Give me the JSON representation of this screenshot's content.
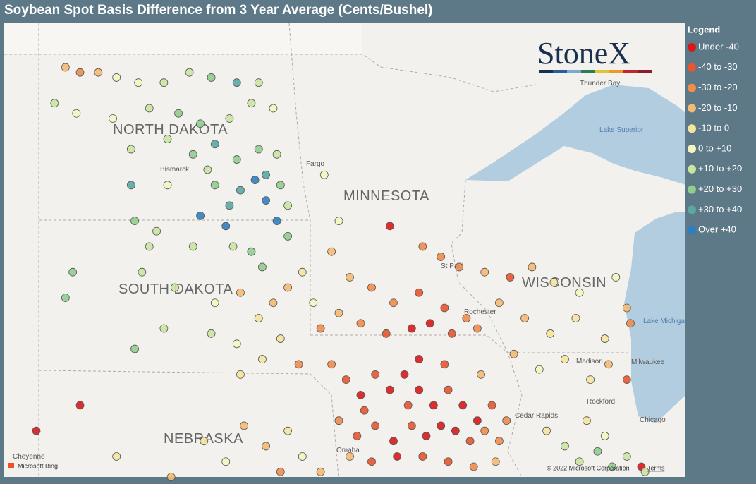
{
  "title": "Soybean Spot Basis Difference from 3 Year Average (Cents/Bushel)",
  "legend": {
    "title": "Legend",
    "items": [
      {
        "label": "Under -40",
        "color": "#d7191c"
      },
      {
        "label": "-40 to -30",
        "color": "#e8552f"
      },
      {
        "label": "-30 to -20",
        "color": "#f08c4c"
      },
      {
        "label": "-20 to -10",
        "color": "#f5ba72"
      },
      {
        "label": "-10 to 0",
        "color": "#f5e49c"
      },
      {
        "label": "0 to +10",
        "color": "#f4f6c0"
      },
      {
        "label": "+10 to +20",
        "color": "#c8e6a0"
      },
      {
        "label": "+20 to +30",
        "color": "#90cd8f"
      },
      {
        "label": "+30 to +40",
        "color": "#5aa8a2"
      },
      {
        "label": "Over +40",
        "color": "#2f7fc0"
      }
    ]
  },
  "map": {
    "logo": "StoneX",
    "labels": [
      "NORTH DAKOTA",
      "MINNESOTA",
      "SOUTH DAKOTA",
      "WISCONSIN",
      "NEBRASKA",
      "Bismarck",
      "Fargo",
      "St Paul",
      "Rochester",
      "Madison",
      "Milwaukee",
      "Chicago",
      "Rockford",
      "Cedar Rapids",
      "Omaha",
      "Cheyenne",
      "Thunder Bay",
      "Lake Superior",
      "Lake Michigan"
    ],
    "attribution": "Microsoft Bing",
    "copyright": "© 2022 Microsoft Corporation",
    "terms": "Terms",
    "lon_range": [
      -104.98,
      -86.29
    ],
    "lat_range": [
      49.76,
      40.9
    ],
    "points": [
      [
        -103.3,
        48.9,
        3
      ],
      [
        -102.9,
        48.8,
        2
      ],
      [
        -102.4,
        48.8,
        3
      ],
      [
        -101.9,
        48.7,
        5
      ],
      [
        -101.3,
        48.6,
        5
      ],
      [
        -100.6,
        48.6,
        6
      ],
      [
        -99.9,
        48.8,
        6
      ],
      [
        -99.3,
        48.7,
        7
      ],
      [
        -98.6,
        48.6,
        8
      ],
      [
        -98.0,
        48.6,
        6
      ],
      [
        -103.6,
        48.2,
        6
      ],
      [
        -103.0,
        48.0,
        5
      ],
      [
        -102.0,
        47.9,
        5
      ],
      [
        -101.0,
        48.1,
        6
      ],
      [
        -100.2,
        48.0,
        7
      ],
      [
        -99.6,
        47.8,
        7
      ],
      [
        -98.8,
        47.9,
        6
      ],
      [
        -98.2,
        48.2,
        6
      ],
      [
        -97.6,
        48.1,
        5
      ],
      [
        -101.5,
        47.3,
        6
      ],
      [
        -100.5,
        47.5,
        6
      ],
      [
        -99.8,
        47.2,
        7
      ],
      [
        -99.2,
        47.4,
        8
      ],
      [
        -98.6,
        47.1,
        7
      ],
      [
        -98.0,
        47.3,
        7
      ],
      [
        -97.5,
        47.2,
        6
      ],
      [
        -101.5,
        46.6,
        8
      ],
      [
        -100.5,
        46.6,
        5
      ],
      [
        -99.4,
        46.9,
        6
      ],
      [
        -99.2,
        46.6,
        7
      ],
      [
        -98.5,
        46.5,
        8
      ],
      [
        -98.1,
        46.7,
        9
      ],
      [
        -97.8,
        46.8,
        8
      ],
      [
        -97.4,
        46.6,
        7
      ],
      [
        -97.8,
        46.3,
        9
      ],
      [
        -97.2,
        46.2,
        6
      ],
      [
        -98.8,
        46.2,
        8
      ],
      [
        -99.6,
        46.0,
        9
      ],
      [
        -101.4,
        45.9,
        7
      ],
      [
        -100.8,
        45.7,
        6
      ],
      [
        -101.0,
        45.4,
        6
      ],
      [
        -99.8,
        45.4,
        6
      ],
      [
        -98.7,
        45.4,
        6
      ],
      [
        -98.2,
        45.3,
        7
      ],
      [
        -97.9,
        45.0,
        7
      ],
      [
        -97.2,
        45.6,
        7
      ],
      [
        -97.5,
        45.9,
        9
      ],
      [
        -98.9,
        45.8,
        9
      ],
      [
        -103.1,
        44.9,
        7
      ],
      [
        -103.3,
        44.4,
        7
      ],
      [
        -101.2,
        44.9,
        6
      ],
      [
        -100.3,
        44.6,
        6
      ],
      [
        -99.2,
        44.3,
        5
      ],
      [
        -98.5,
        44.5,
        3
      ],
      [
        -98.0,
        44.0,
        4
      ],
      [
        -97.6,
        44.3,
        3
      ],
      [
        -97.2,
        44.6,
        3
      ],
      [
        -96.8,
        44.9,
        4
      ],
      [
        -101.4,
        43.4,
        7
      ],
      [
        -100.6,
        43.8,
        6
      ],
      [
        -99.3,
        43.7,
        6
      ],
      [
        -98.6,
        43.5,
        5
      ],
      [
        -97.9,
        43.2,
        4
      ],
      [
        -97.4,
        43.6,
        4
      ],
      [
        -96.9,
        43.1,
        2
      ],
      [
        -98.5,
        42.9,
        4
      ],
      [
        -102.9,
        42.3,
        0
      ],
      [
        -104.1,
        41.8,
        0
      ],
      [
        -101.9,
        41.3,
        4
      ],
      [
        -100.4,
        40.9,
        3
      ],
      [
        -98.4,
        41.9,
        3
      ],
      [
        -97.8,
        41.5,
        3
      ],
      [
        -97.2,
        41.8,
        4
      ],
      [
        -96.8,
        41.3,
        5
      ],
      [
        -96.3,
        41.0,
        3
      ],
      [
        -97.4,
        41.0,
        2
      ],
      [
        -98.9,
        41.2,
        5
      ],
      [
        -99.5,
        41.6,
        4
      ],
      [
        -96.2,
        46.8,
        5
      ],
      [
        -95.8,
        45.9,
        5
      ],
      [
        -94.4,
        45.8,
        0
      ],
      [
        -93.5,
        45.4,
        2
      ],
      [
        -93.0,
        45.2,
        2
      ],
      [
        -92.5,
        45.0,
        2
      ],
      [
        -91.8,
        44.9,
        3
      ],
      [
        -95.5,
        44.8,
        3
      ],
      [
        -94.9,
        44.6,
        2
      ],
      [
        -94.3,
        44.3,
        2
      ],
      [
        -93.6,
        44.5,
        1
      ],
      [
        -92.9,
        44.2,
        1
      ],
      [
        -92.3,
        44.0,
        2
      ],
      [
        -95.8,
        44.1,
        3
      ],
      [
        -95.2,
        43.9,
        2
      ],
      [
        -94.5,
        43.7,
        1
      ],
      [
        -93.8,
        43.8,
        0
      ],
      [
        -93.3,
        43.9,
        0
      ],
      [
        -92.7,
        43.7,
        1
      ],
      [
        -92.0,
        43.8,
        2
      ],
      [
        -96.0,
        45.3,
        3
      ],
      [
        -96.5,
        44.3,
        5
      ],
      [
        -96.3,
        43.8,
        2
      ],
      [
        -96.0,
        43.1,
        2
      ],
      [
        -95.6,
        42.8,
        1
      ],
      [
        -95.2,
        42.5,
        0
      ],
      [
        -94.8,
        42.9,
        1
      ],
      [
        -94.4,
        42.6,
        0
      ],
      [
        -94.0,
        42.9,
        0
      ],
      [
        -93.6,
        42.6,
        0
      ],
      [
        -93.2,
        42.3,
        0
      ],
      [
        -92.8,
        42.6,
        1
      ],
      [
        -92.4,
        42.3,
        0
      ],
      [
        -92.0,
        42.0,
        0
      ],
      [
        -91.6,
        42.3,
        1
      ],
      [
        -91.2,
        42.0,
        2
      ],
      [
        -95.8,
        42.0,
        2
      ],
      [
        -95.3,
        41.7,
        1
      ],
      [
        -94.8,
        41.9,
        1
      ],
      [
        -94.3,
        41.6,
        0
      ],
      [
        -93.8,
        41.9,
        1
      ],
      [
        -93.4,
        41.7,
        0
      ],
      [
        -93.0,
        41.9,
        0
      ],
      [
        -92.6,
        41.8,
        0
      ],
      [
        -92.2,
        41.6,
        1
      ],
      [
        -91.8,
        41.8,
        2
      ],
      [
        -91.4,
        41.6,
        2
      ],
      [
        -95.5,
        41.3,
        3
      ],
      [
        -94.9,
        41.2,
        1
      ],
      [
        -94.2,
        41.3,
        0
      ],
      [
        -93.5,
        41.3,
        1
      ],
      [
        -92.8,
        41.2,
        1
      ],
      [
        -92.1,
        41.1,
        2
      ],
      [
        -91.5,
        41.2,
        3
      ],
      [
        -95.1,
        42.2,
        1
      ],
      [
        -93.9,
        42.3,
        1
      ],
      [
        -92.9,
        43.1,
        1
      ],
      [
        -93.6,
        43.2,
        0
      ],
      [
        -91.9,
        42.9,
        3
      ],
      [
        -91.1,
        44.8,
        1
      ],
      [
        -90.5,
        45.0,
        3
      ],
      [
        -89.9,
        44.7,
        4
      ],
      [
        -89.2,
        44.5,
        5
      ],
      [
        -88.2,
        44.8,
        5
      ],
      [
        -91.4,
        44.3,
        3
      ],
      [
        -90.7,
        44.0,
        3
      ],
      [
        -90.0,
        43.7,
        4
      ],
      [
        -89.3,
        44.0,
        4
      ],
      [
        -88.5,
        43.6,
        4
      ],
      [
        -87.9,
        44.2,
        3
      ],
      [
        -87.8,
        43.9,
        2
      ],
      [
        -91.0,
        43.3,
        3
      ],
      [
        -90.3,
        43.0,
        5
      ],
      [
        -89.6,
        43.2,
        4
      ],
      [
        -88.9,
        42.8,
        4
      ],
      [
        -88.4,
        43.1,
        3
      ],
      [
        -87.9,
        42.8,
        1
      ],
      [
        -90.1,
        41.8,
        4
      ],
      [
        -89.6,
        41.5,
        6
      ],
      [
        -89.2,
        41.2,
        6
      ],
      [
        -88.7,
        41.4,
        7
      ],
      [
        -88.3,
        41.1,
        7
      ],
      [
        -87.9,
        41.3,
        6
      ],
      [
        -88.5,
        41.7,
        5
      ],
      [
        -89.0,
        42.0,
        4
      ],
      [
        -87.5,
        41.1,
        0
      ],
      [
        -87.4,
        41.0,
        6
      ]
    ]
  }
}
